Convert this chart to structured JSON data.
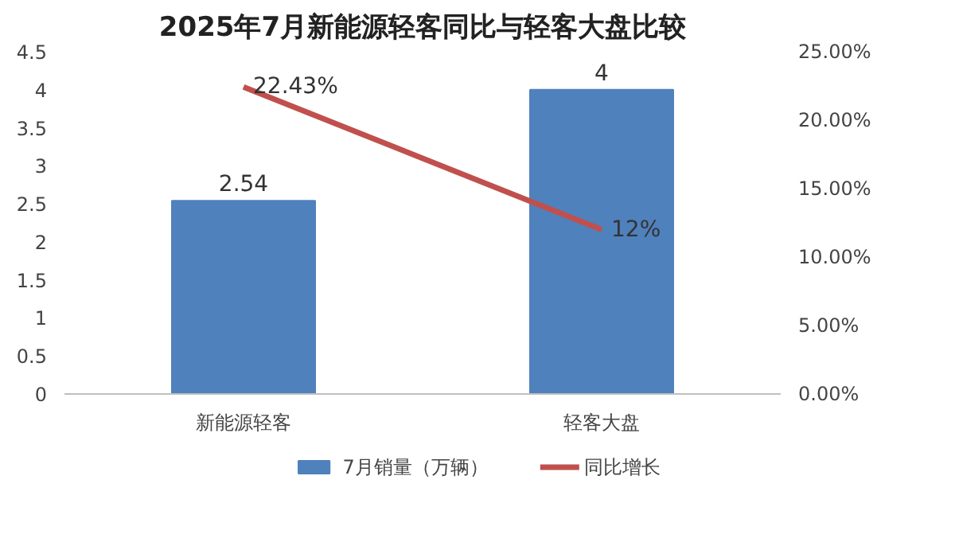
{
  "chart_data": {
    "type": "bar",
    "title": "2025年7月新能源轻客同比与轻客大盘比较",
    "categories": [
      "新能源轻客",
      "轻客大盘"
    ],
    "series": [
      {
        "name": "7月销量（万辆）",
        "color": "#4f81bd",
        "values": [
          2.54,
          4
        ],
        "value_labels": [
          "2.54",
          "4"
        ]
      },
      {
        "name": "同比增长",
        "type": "line",
        "axis": "y2",
        "color": "#c0504d",
        "values": [
          22.43,
          12
        ],
        "value_labels": [
          "22.43%",
          "12%"
        ]
      }
    ],
    "ylim": [
      0,
      4.5
    ],
    "yticks": [
      0,
      0.5,
      1,
      1.5,
      2,
      2.5,
      3,
      3.5,
      4,
      4.5
    ],
    "y2lim": [
      0,
      25
    ],
    "y2ticks": [
      {
        "value": 0,
        "label": "0.00%"
      },
      {
        "value": 5,
        "label": "5.00%"
      },
      {
        "value": 10,
        "label": "10.00%"
      },
      {
        "value": 15,
        "label": "15.00%"
      },
      {
        "value": 20,
        "label": "20.00%"
      },
      {
        "value": 25,
        "label": "25.00%"
      }
    ],
    "legend": "bottom",
    "grid": false
  }
}
